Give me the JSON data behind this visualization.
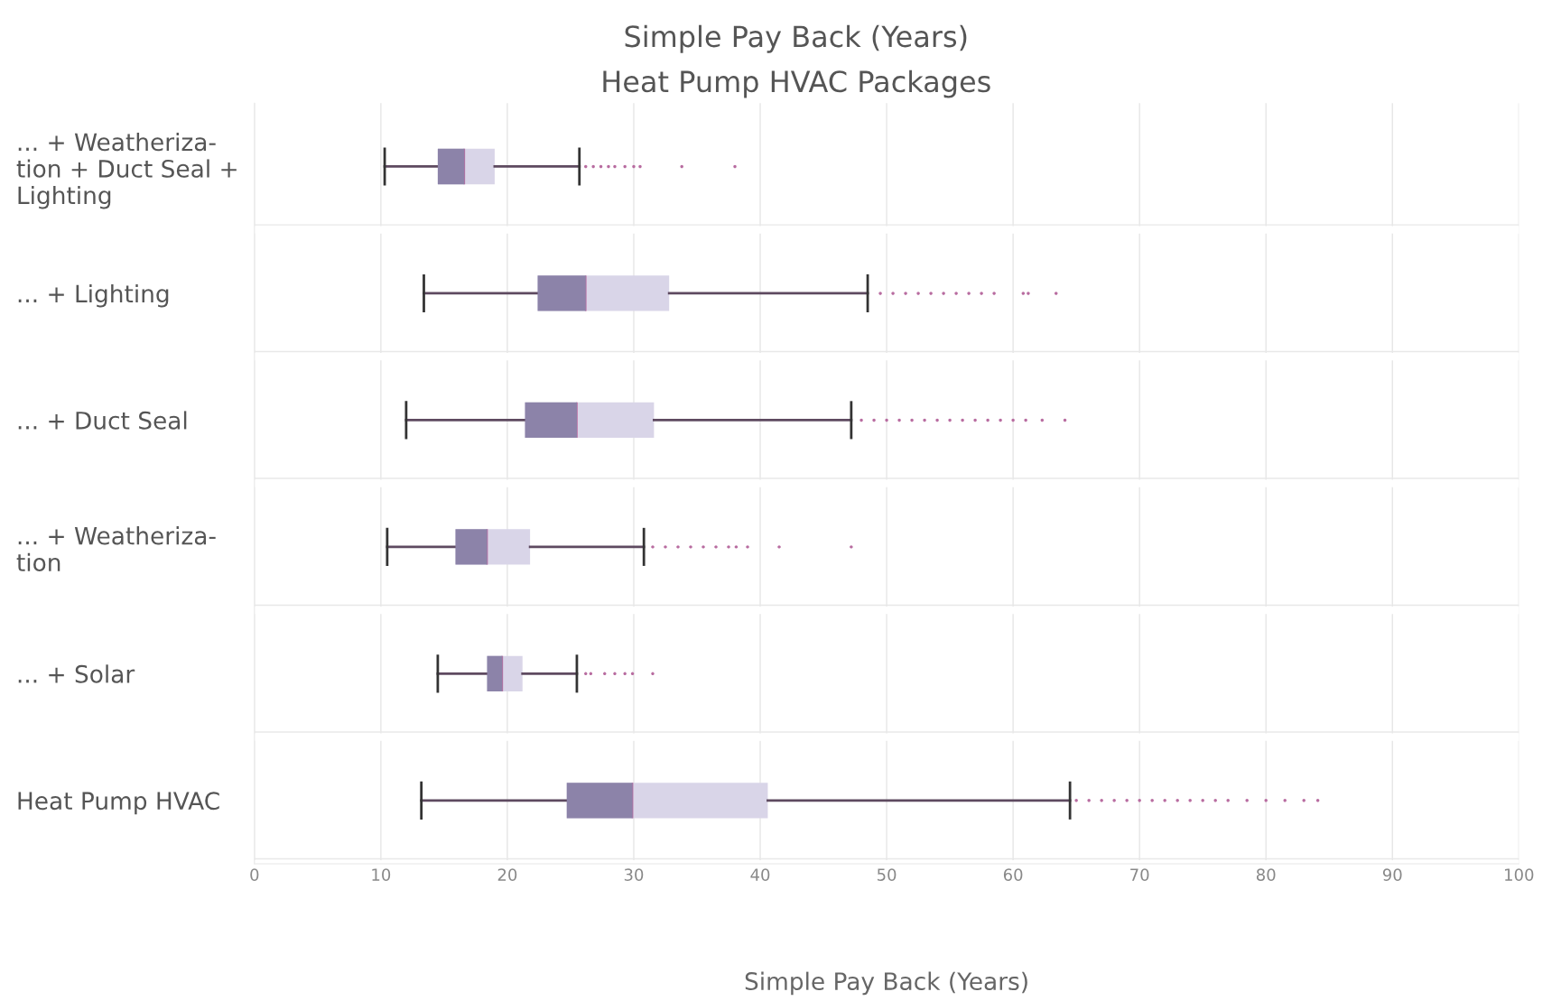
{
  "chart_data": {
    "type": "box",
    "orientation": "horizontal",
    "title": "Simple Pay Back (Years)",
    "subtitle": "Heat Pump HVAC Packages",
    "xlabel": "Simple Pay Back (Years)",
    "categories": [
      "... + Weatheriza-\ntion + Duct Seal +\nLighting",
      "... + Lighting",
      "... + Duct Seal",
      "... + Weatheriza-\ntion",
      "... + Solar",
      "Heat Pump HVAC"
    ],
    "color": "#8c83a9",
    "colors": [
      "#d9d5e8",
      "#d9d5e8",
      "#d9d5e8",
      "#d9d5e8",
      "#d9d5e8",
      "#d9d5e8"
    ],
    "boxes": [
      {
        "low": 10.3,
        "q1": 14.5,
        "median": 16.6,
        "q3": 19.0,
        "high": 25.7,
        "outliers": [
          26.2,
          26.8,
          27.4,
          28.0,
          28.5,
          29.3,
          30.0,
          30.5,
          33.8,
          38.0
        ]
      },
      {
        "low": 13.4,
        "q1": 22.4,
        "median": 26.2,
        "q3": 32.8,
        "high": 48.5,
        "outliers": [
          49.5,
          50.5,
          51.5,
          52.5,
          53.5,
          54.5,
          55.5,
          56.5,
          57.5,
          58.5,
          60.8,
          61.2,
          63.4
        ]
      },
      {
        "low": 12.0,
        "q1": 21.4,
        "median": 25.5,
        "q3": 31.6,
        "high": 47.2,
        "outliers": [
          48,
          49,
          50,
          51,
          52,
          53,
          54,
          55,
          56,
          57,
          58,
          59,
          60,
          61,
          62.3,
          64.1
        ]
      },
      {
        "low": 10.5,
        "q1": 15.9,
        "median": 18.4,
        "q3": 21.8,
        "high": 30.8,
        "outliers": [
          31.5,
          32.5,
          33.5,
          34.5,
          35.5,
          36.5,
          37.5,
          38.1,
          39.0,
          41.5,
          47.2
        ]
      },
      {
        "low": 14.5,
        "q1": 18.4,
        "median": 19.6,
        "q3": 21.2,
        "high": 25.5,
        "outliers": [
          26.2,
          26.6,
          27.7,
          28.5,
          29.3,
          29.9,
          31.5
        ]
      },
      {
        "low": 13.2,
        "q1": 24.7,
        "median": 29.9,
        "q3": 40.6,
        "high": 64.5,
        "outliers": [
          65,
          66,
          67,
          68,
          69,
          70,
          71,
          72,
          73,
          74,
          75,
          76,
          77,
          78.5,
          80,
          81.5,
          83,
          84.1
        ]
      }
    ],
    "xlim": [
      0,
      100
    ],
    "xticks": [
      0,
      10,
      20,
      30,
      40,
      50,
      60,
      70,
      80,
      90,
      100
    ],
    "grid": "x"
  }
}
